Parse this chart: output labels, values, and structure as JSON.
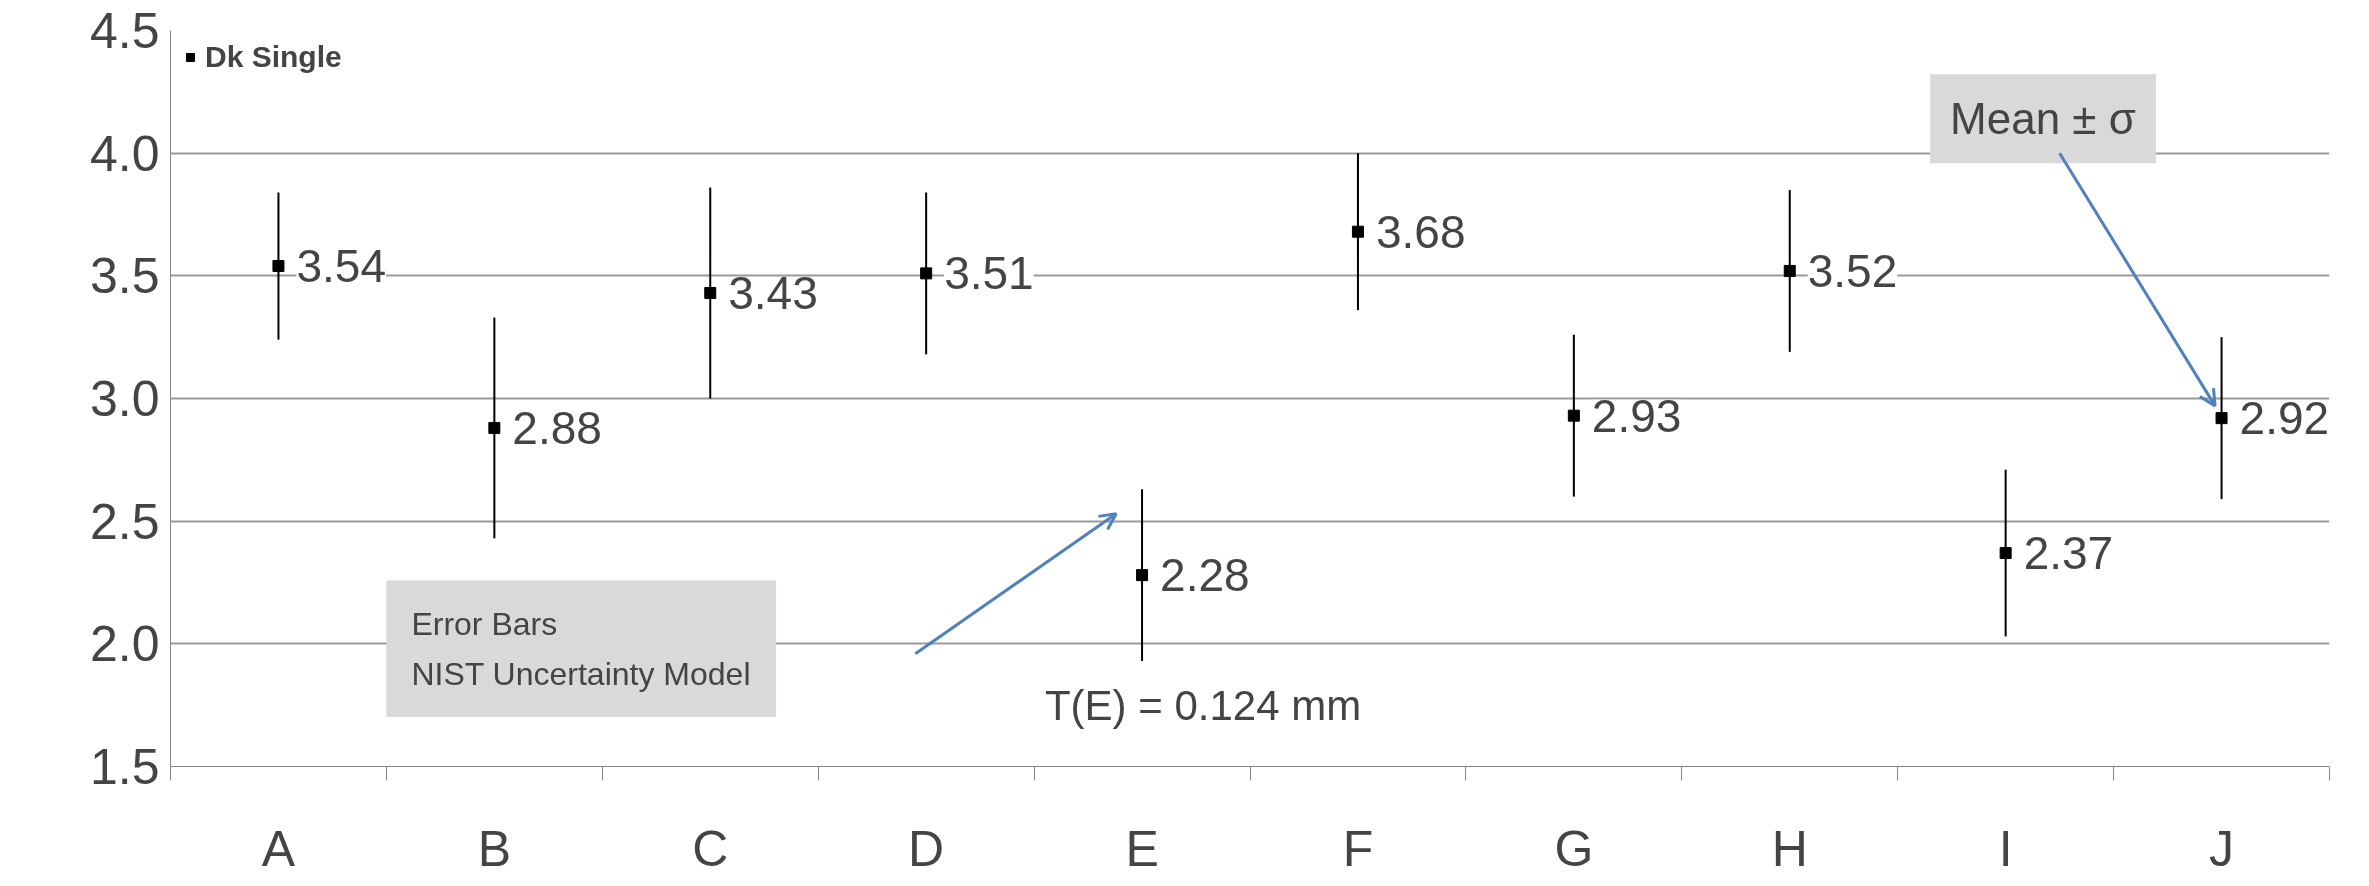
{
  "chart_data": {
    "type": "scatter",
    "categories": [
      "A",
      "B",
      "C",
      "D",
      "E",
      "F",
      "G",
      "H",
      "I",
      "J"
    ],
    "series": [
      {
        "name": "Dk Single",
        "color": "#000000",
        "values": [
          3.54,
          2.88,
          3.43,
          3.51,
          2.28,
          3.68,
          2.93,
          3.52,
          2.37,
          2.92
        ],
        "errors": [
          0.3,
          0.45,
          0.43,
          0.33,
          0.35,
          0.32,
          0.33,
          0.33,
          0.34,
          0.33
        ]
      }
    ],
    "data_labels": true,
    "marker": "square",
    "ylim": [
      1.5,
      4.5
    ],
    "yticks": [
      {
        "value": 1.5,
        "label": "1.5"
      },
      {
        "value": 2.0,
        "label": "2.0"
      },
      {
        "value": 2.5,
        "label": "2.5"
      },
      {
        "value": 3.0,
        "label": "3.0"
      },
      {
        "value": 3.5,
        "label": "3.5"
      },
      {
        "value": 4.0,
        "label": "4.0"
      },
      {
        "value": 4.5,
        "label": "4.5"
      }
    ],
    "grid": "y",
    "legend": "top left",
    "annotations": [
      "Error Bars\nNIST Uncertainty Model",
      {
        "text": "T(E) = 0.124 mm"
      },
      "Mean ± σ"
    ]
  }
}
